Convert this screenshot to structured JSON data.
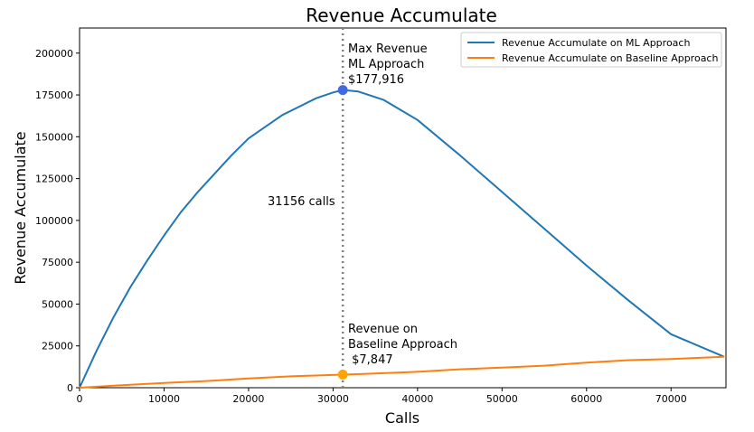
{
  "chart_data": {
    "type": "line",
    "title": "Revenue Accumulate",
    "xlabel": "Calls",
    "ylabel": "Revenue Accumulate",
    "xlim": [
      0,
      76500
    ],
    "ylim": [
      0,
      215000
    ],
    "xticks": [
      0,
      10000,
      20000,
      30000,
      40000,
      50000,
      60000,
      70000
    ],
    "yticks": [
      0,
      25000,
      50000,
      75000,
      100000,
      125000,
      150000,
      175000,
      200000
    ],
    "grid": false,
    "legend_position": "top-right",
    "series": [
      {
        "name": "Revenue Accumulate on ML Approach",
        "color": "#1f77b4",
        "x": [
          0,
          2000,
          4000,
          6000,
          8000,
          10000,
          12000,
          14000,
          16000,
          18000,
          20000,
          22000,
          24000,
          26000,
          28000,
          30000,
          31156,
          33000,
          36000,
          40000,
          45000,
          50000,
          55000,
          60000,
          65000,
          70000,
          76300
        ],
        "y": [
          0,
          22000,
          42000,
          60000,
          76000,
          91000,
          105000,
          117000,
          128000,
          139000,
          149000,
          156000,
          163000,
          168000,
          173000,
          176500,
          177916,
          177000,
          172000,
          160000,
          139000,
          117000,
          95000,
          73000,
          52000,
          32000,
          18500
        ]
      },
      {
        "name": "Revenue Accumulate on Baseline Approach",
        "color": "#ff7f0e",
        "x": [
          0,
          5000,
          10000,
          15000,
          20000,
          25000,
          31156,
          35000,
          40000,
          45000,
          50000,
          55000,
          60000,
          65000,
          70000,
          76300
        ],
        "y": [
          0,
          1500,
          2800,
          4000,
          5500,
          6800,
          7847,
          8500,
          9500,
          11000,
          12000,
          13200,
          15000,
          16500,
          17200,
          18500
        ]
      }
    ],
    "vline": {
      "x": 31156,
      "color": "#808080"
    },
    "markers": [
      {
        "x": 31156,
        "y": 177916,
        "color": "#4169e1"
      },
      {
        "x": 31156,
        "y": 7847,
        "color": "#ffa500"
      }
    ],
    "annotations": {
      "max_line1": "Max Revenue",
      "max_line2": "ML Approach",
      "max_line3": "$177,916",
      "calls": "31156 calls",
      "base_line1": "Revenue on",
      "base_line2": "Baseline Approach",
      "base_line3": " $7,847"
    }
  }
}
